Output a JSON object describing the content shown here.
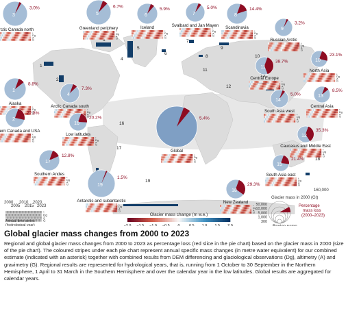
{
  "colors": {
    "loss": "#8e0c22",
    "pie": "#a5bdd6",
    "global_pie": "#7f9fc4",
    "land": "#d9d9d9",
    "glacier": "#113a63",
    "band": "#cccccc"
  },
  "regions": [
    {
      "num": "1",
      "name": "Alaska",
      "pct": "8.8%"
    },
    {
      "num": "2",
      "name": "Western Canada and USA",
      "pct": "22.8%"
    },
    {
      "num": "3",
      "name": "Arctic Canada north",
      "pct": "3.0%"
    },
    {
      "num": "4",
      "name": "Arctic Canada south",
      "pct": "7.3%"
    },
    {
      "num": "5",
      "name": "Greenland periphery",
      "pct": "6.7%"
    },
    {
      "num": "6",
      "name": "Iceland",
      "pct": "5.9%"
    },
    {
      "num": "7",
      "name": "Svalbard and Jan Mayen",
      "pct": "5.0%"
    },
    {
      "num": "8",
      "name": "Scandinavia",
      "pct": "14.4%"
    },
    {
      "num": "9",
      "name": "Russian Arctic",
      "pct": "3.2%"
    },
    {
      "num": "10",
      "name": "North Asia",
      "pct": "23.1%"
    },
    {
      "num": "11",
      "name": "Central Europe",
      "pct": "38.7%"
    },
    {
      "num": "12",
      "name": "Caucasus and Middle East",
      "pct": "35.3%"
    },
    {
      "num": "13",
      "name": "Central Asia",
      "pct": "8.5%"
    },
    {
      "num": "14",
      "name": "South Asia west",
      "pct": "5.0%"
    },
    {
      "num": "15",
      "name": "South Asia east",
      "pct": "21.4%"
    },
    {
      "num": "16",
      "name": "Low latitudes",
      "pct": "20.2%"
    },
    {
      "num": "17",
      "name": "Southern Andes",
      "pct": "12.8%"
    },
    {
      "num": "18",
      "name": "New Zealand",
      "pct": "29.3%"
    },
    {
      "num": "19",
      "name": "Antarctic and subantarctic",
      "pct": "1.5%"
    },
    {
      "num": "",
      "name": "Global",
      "pct": "5.4%"
    }
  ],
  "map_numbers": [
    "1",
    "2",
    "3",
    "4",
    "5",
    "6",
    "7",
    "8",
    "9",
    "10",
    "11",
    "12",
    "13",
    "14",
    "15",
    "16",
    "17",
    "18",
    "19"
  ],
  "row_labels": {
    "star": "*",
    "dg": "Dg",
    "a": "A",
    "g": "G"
  },
  "key": {
    "years_top": [
      "2005",
      "2015",
      "2023"
    ],
    "years_bottom": [
      "2000",
      "2010",
      "2020"
    ],
    "rows": [
      "*",
      "Dg",
      "A",
      "G"
    ],
    "caption_line1": "Annual time series",
    "caption_line2": "(hydrological year)"
  },
  "colorbar": {
    "title": "Glacier mass change (m w.e.)",
    "ticks": [
      "−2.0",
      "−1.5",
      "−1.0",
      "−0.5",
      "0",
      "0.5",
      "1.0",
      "1.5",
      "2.0"
    ]
  },
  "size_legend": {
    "top_value": "160,000",
    "title": "Glacier mass in 2000 (Gt)",
    "values": [
      "50,000",
      "10,000",
      "5,000",
      "1,000",
      "300"
    ],
    "pct_label_1": "Percentage",
    "pct_label_2": "mass loss",
    "pct_label_3": "(2000–2023)",
    "region_name": "Region name"
  },
  "caption": {
    "title": "Global glacier mass changes from 2000 to 2023",
    "body": "Regional and global glacier mass changes from 2000 to 2023 as percentage loss (red slice in the pie chart) based on the glacier mass in 2000 (size of the pie chart). The coloured stripes under each pie chart represent annual specific mass changes (in metre water equivalent) for our combined estimate (indicated with an asterisk) together with combined results from DEM differencing and glaciological observations (Dg), altimetry (A) and gravimetry (G). Regional results are represented for hydrological years, that is, running from 1 October to 30 September in the Northern Hemisphere, 1 April to 31 March in the Southern Hemisphere and over the calendar year in the low latitudes. Global results are aggregated for calendar years."
  }
}
